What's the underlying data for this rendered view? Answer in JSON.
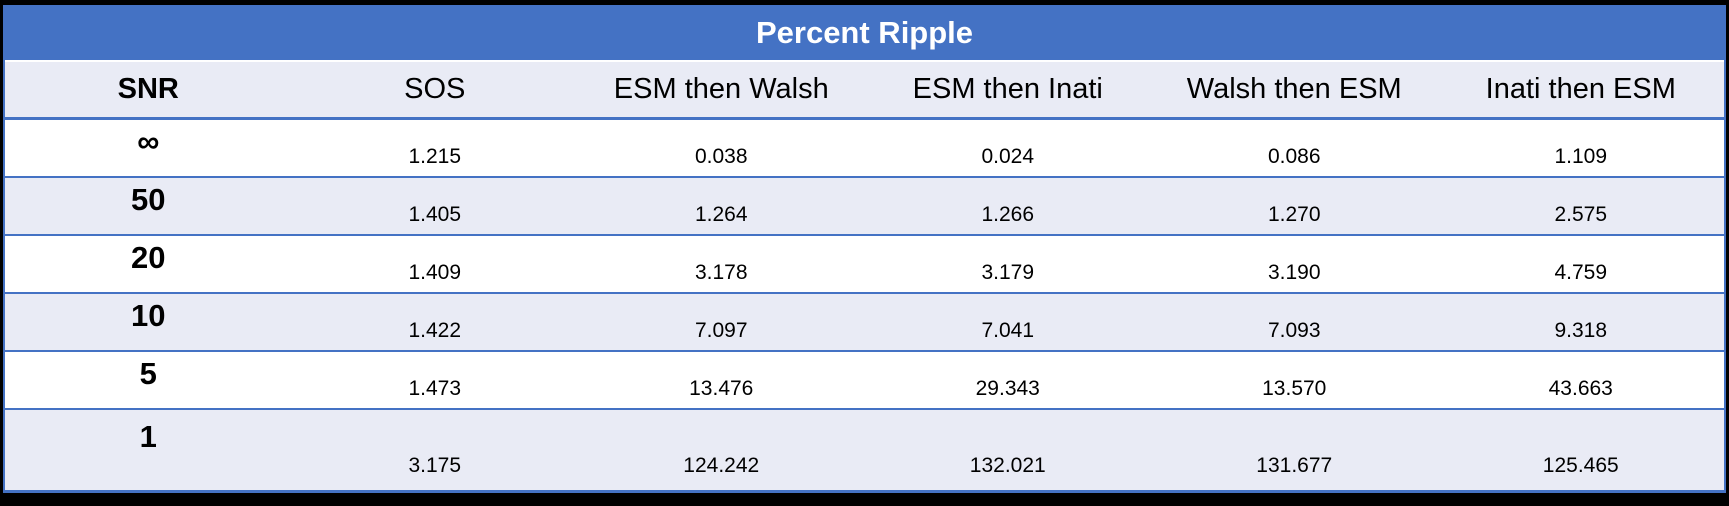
{
  "table": {
    "title": "Percent Ripple",
    "columns": [
      "SNR",
      "SOS",
      "ESM then Walsh",
      "ESM then Inati",
      "Walsh then ESM",
      "Inati then ESM"
    ],
    "rows": [
      {
        "snr": "∞",
        "values": [
          "1.215",
          "0.038",
          "0.024",
          "0.086",
          "1.109"
        ]
      },
      {
        "snr": "50",
        "values": [
          "1.405",
          "1.264",
          "1.266",
          "1.270",
          "2.575"
        ]
      },
      {
        "snr": "20",
        "values": [
          "1.409",
          "3.178",
          "3.179",
          "3.190",
          "4.759"
        ]
      },
      {
        "snr": "10",
        "values": [
          "1.422",
          "7.097",
          "7.041",
          "7.093",
          "9.318"
        ]
      },
      {
        "snr": "5",
        "values": [
          "1.473",
          "13.476",
          "29.343",
          "13.570",
          "43.663"
        ]
      },
      {
        "snr": "1",
        "values": [
          "3.175",
          "124.242",
          "132.021",
          "131.677",
          "125.465"
        ]
      }
    ],
    "colors": {
      "accent": "#4472C4",
      "band": "#E9EBF5",
      "frame": "#000000",
      "title_text": "#FFFFFF",
      "text": "#000000"
    }
  },
  "chart_data": {
    "type": "table",
    "title": "Percent Ripple",
    "columns": [
      "SNR",
      "SOS",
      "ESM then Walsh",
      "ESM then Inati",
      "Walsh then ESM",
      "Inati then ESM"
    ],
    "snr_levels": [
      "∞",
      "50",
      "20",
      "10",
      "5",
      "1"
    ],
    "series": [
      {
        "name": "SOS",
        "values": [
          1.215,
          1.405,
          1.409,
          1.422,
          1.473,
          3.175
        ]
      },
      {
        "name": "ESM then Walsh",
        "values": [
          0.038,
          1.264,
          3.178,
          7.097,
          13.476,
          124.242
        ]
      },
      {
        "name": "ESM then Inati",
        "values": [
          0.024,
          1.266,
          3.179,
          7.041,
          29.343,
          132.021
        ]
      },
      {
        "name": "Walsh then ESM",
        "values": [
          0.086,
          1.27,
          3.19,
          7.093,
          13.57,
          131.677
        ]
      },
      {
        "name": "Inati then ESM",
        "values": [
          1.109,
          2.575,
          4.759,
          9.318,
          43.663,
          125.465
        ]
      }
    ]
  }
}
